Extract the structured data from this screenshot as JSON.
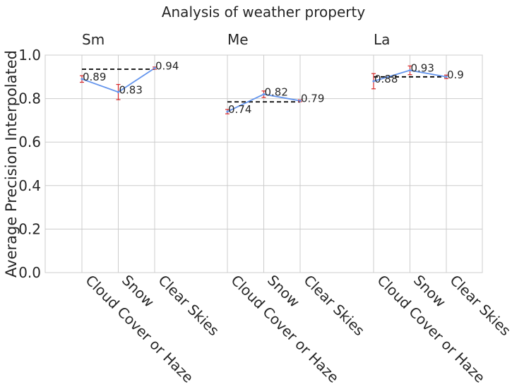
{
  "chart_data": {
    "type": "line",
    "title": "Analysis of weather property",
    "ylabel": "Average Precision Interpolated",
    "xlabel": "",
    "ylim": [
      0.0,
      1.0
    ],
    "yticks": [
      "0.0",
      "0.2",
      "0.4",
      "0.6",
      "0.8",
      "1.0"
    ],
    "grid": true,
    "categories": [
      "Cloud Cover or Haze",
      "Snow",
      "Clear Skies"
    ],
    "groups": [
      {
        "name": "Sm",
        "values": [
          0.89,
          0.83,
          0.94
        ],
        "labels": [
          "0.89",
          "0.83",
          "0.94"
        ],
        "error": [
          0.015,
          0.035,
          0.005
        ],
        "reference": 0.935
      },
      {
        "name": "Me",
        "values": [
          0.74,
          0.82,
          0.79
        ],
        "labels": [
          "0.74",
          "0.82",
          "0.79"
        ],
        "error": [
          0.01,
          0.015,
          0.004
        ],
        "reference": 0.785
      },
      {
        "name": "La",
        "values": [
          0.88,
          0.93,
          0.9
        ],
        "labels": [
          "0.88",
          "0.93",
          "0.9"
        ],
        "error": [
          0.035,
          0.02,
          0.008
        ],
        "reference": 0.9
      }
    ],
    "colors": {
      "line": "#6495ed",
      "error": "#d62728",
      "reference": "#000000",
      "grid": "#cccccc"
    }
  }
}
